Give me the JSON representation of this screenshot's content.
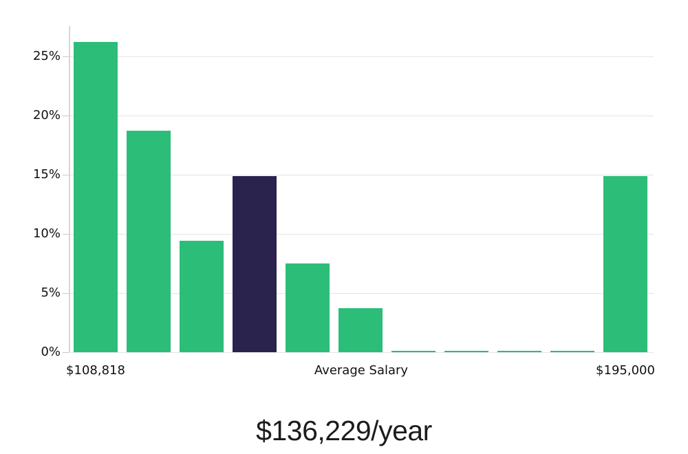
{
  "chart_data": {
    "type": "bar",
    "title": "$136,229/year",
    "x_axis_labels": [
      "$108,818",
      "Average Salary",
      "$195,000"
    ],
    "y_tick_labels": [
      "0%",
      "5%",
      "10%",
      "15%",
      "20%",
      "25%"
    ],
    "y_tick_values": [
      0,
      5,
      10,
      15,
      20,
      25
    ],
    "ylim": [
      0,
      27.5
    ],
    "xlabel": "",
    "ylabel": "",
    "grid": true,
    "legend": false,
    "categories": [
      "bin-1",
      "bin-2",
      "bin-3",
      "bin-4",
      "bin-5",
      "bin-6",
      "bin-7",
      "bin-8",
      "bin-9",
      "bin-10",
      "bin-11"
    ],
    "values": [
      26.2,
      18.7,
      9.4,
      14.9,
      7.5,
      3.7,
      0.1,
      0.1,
      0.1,
      0.1,
      14.9
    ],
    "highlighted_bar_index": 3,
    "colors": {
      "bar_default": "#2cbd78",
      "bar_highlight": "#29234d",
      "gridline": "#e4e4e4",
      "axis_line": "#d6d6d6",
      "tick": "#c9c9c9",
      "label_text": "#111111",
      "title_text": "#1c1c1c"
    }
  }
}
